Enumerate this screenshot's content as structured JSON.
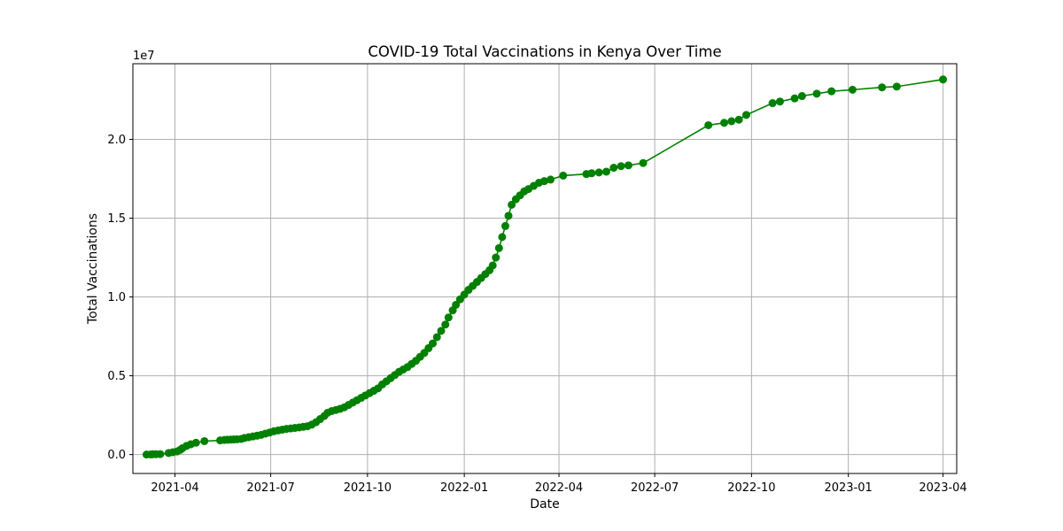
{
  "chart_data": {
    "type": "line",
    "title": "COVID-19 Total Vaccinations in Kenya Over Time",
    "xlabel": "Date",
    "ylabel": "Total Vaccinations",
    "y_offset_label": "1e7",
    "y_multiplier": 10000000,
    "xlim": [
      "2021-02-20",
      "2023-04-14"
    ],
    "ylim": [
      -1200000,
      24800000
    ],
    "x_ticks": [
      {
        "date": "2021-04-01",
        "label": "2021-04"
      },
      {
        "date": "2021-07-01",
        "label": "2021-07"
      },
      {
        "date": "2021-10-01",
        "label": "2021-10"
      },
      {
        "date": "2022-01-01",
        "label": "2022-01"
      },
      {
        "date": "2022-04-01",
        "label": "2022-04"
      },
      {
        "date": "2022-07-01",
        "label": "2022-07"
      },
      {
        "date": "2022-10-01",
        "label": "2022-10"
      },
      {
        "date": "2023-01-01",
        "label": "2023-01"
      },
      {
        "date": "2023-04-01",
        "label": "2023-04"
      }
    ],
    "y_ticks": [
      {
        "value": 0,
        "label": "0.0"
      },
      {
        "value": 5000000,
        "label": "0.5"
      },
      {
        "value": 10000000,
        "label": "1.0"
      },
      {
        "value": 15000000,
        "label": "1.5"
      },
      {
        "value": 20000000,
        "label": "2.0"
      }
    ],
    "grid": true,
    "series": [
      {
        "color": "#008000",
        "marker": "circle",
        "points": [
          [
            "2021-03-05",
            0
          ],
          [
            "2021-03-09",
            10000
          ],
          [
            "2021-03-11",
            20000
          ],
          [
            "2021-03-14",
            25000
          ],
          [
            "2021-03-18",
            30000
          ],
          [
            "2021-03-26",
            100000
          ],
          [
            "2021-03-30",
            150000
          ],
          [
            "2021-04-03",
            200000
          ],
          [
            "2021-04-06",
            300000
          ],
          [
            "2021-04-08",
            400000
          ],
          [
            "2021-04-12",
            550000
          ],
          [
            "2021-04-16",
            650000
          ],
          [
            "2021-04-21",
            750000
          ],
          [
            "2021-04-29",
            850000
          ],
          [
            "2021-05-14",
            900000
          ],
          [
            "2021-05-18",
            930000
          ],
          [
            "2021-05-21",
            940000
          ],
          [
            "2021-05-24",
            950000
          ],
          [
            "2021-05-27",
            960000
          ],
          [
            "2021-05-30",
            970000
          ],
          [
            "2021-06-03",
            990000
          ],
          [
            "2021-06-06",
            1050000
          ],
          [
            "2021-06-10",
            1100000
          ],
          [
            "2021-06-14",
            1150000
          ],
          [
            "2021-06-18",
            1200000
          ],
          [
            "2021-06-22",
            1250000
          ],
          [
            "2021-06-26",
            1330000
          ],
          [
            "2021-06-30",
            1400000
          ],
          [
            "2021-07-04",
            1480000
          ],
          [
            "2021-07-08",
            1530000
          ],
          [
            "2021-07-12",
            1580000
          ],
          [
            "2021-07-16",
            1630000
          ],
          [
            "2021-07-20",
            1660000
          ],
          [
            "2021-07-24",
            1690000
          ],
          [
            "2021-07-28",
            1720000
          ],
          [
            "2021-08-01",
            1760000
          ],
          [
            "2021-08-05",
            1800000
          ],
          [
            "2021-08-09",
            1900000
          ],
          [
            "2021-08-13",
            2050000
          ],
          [
            "2021-08-17",
            2250000
          ],
          [
            "2021-08-21",
            2450000
          ],
          [
            "2021-08-24",
            2650000
          ],
          [
            "2021-08-28",
            2760000
          ],
          [
            "2021-09-01",
            2830000
          ],
          [
            "2021-09-05",
            2900000
          ],
          [
            "2021-09-09",
            3000000
          ],
          [
            "2021-09-13",
            3150000
          ],
          [
            "2021-09-17",
            3300000
          ],
          [
            "2021-09-21",
            3450000
          ],
          [
            "2021-09-25",
            3600000
          ],
          [
            "2021-09-29",
            3750000
          ],
          [
            "2021-10-03",
            3900000
          ],
          [
            "2021-10-07",
            4050000
          ],
          [
            "2021-10-11",
            4200000
          ],
          [
            "2021-10-15",
            4450000
          ],
          [
            "2021-10-19",
            4650000
          ],
          [
            "2021-10-23",
            4850000
          ],
          [
            "2021-10-27",
            5050000
          ],
          [
            "2021-10-31",
            5250000
          ],
          [
            "2021-11-04",
            5400000
          ],
          [
            "2021-11-08",
            5550000
          ],
          [
            "2021-11-12",
            5750000
          ],
          [
            "2021-11-16",
            5950000
          ],
          [
            "2021-11-20",
            6200000
          ],
          [
            "2021-11-24",
            6450000
          ],
          [
            "2021-11-28",
            6750000
          ],
          [
            "2021-12-02",
            7050000
          ],
          [
            "2021-12-06",
            7450000
          ],
          [
            "2021-12-10",
            7850000
          ],
          [
            "2021-12-14",
            8250000
          ],
          [
            "2021-12-17",
            8700000
          ],
          [
            "2021-12-21",
            9150000
          ],
          [
            "2021-12-24",
            9500000
          ],
          [
            "2021-12-28",
            9850000
          ],
          [
            "2022-01-01",
            10150000
          ],
          [
            "2022-01-05",
            10450000
          ],
          [
            "2022-01-09",
            10700000
          ],
          [
            "2022-01-13",
            10950000
          ],
          [
            "2022-01-17",
            11200000
          ],
          [
            "2022-01-21",
            11450000
          ],
          [
            "2022-01-25",
            11700000
          ],
          [
            "2022-01-28",
            12000000
          ],
          [
            "2022-01-31",
            12500000
          ],
          [
            "2022-02-03",
            13100000
          ],
          [
            "2022-02-06",
            13800000
          ],
          [
            "2022-02-09",
            14500000
          ],
          [
            "2022-02-12",
            15150000
          ],
          [
            "2022-02-15",
            15850000
          ],
          [
            "2022-02-19",
            16200000
          ],
          [
            "2022-02-23",
            16450000
          ],
          [
            "2022-02-27",
            16700000
          ],
          [
            "2022-03-03",
            16850000
          ],
          [
            "2022-03-08",
            17050000
          ],
          [
            "2022-03-13",
            17250000
          ],
          [
            "2022-03-18",
            17350000
          ],
          [
            "2022-03-24",
            17450000
          ],
          [
            "2022-04-05",
            17700000
          ],
          [
            "2022-04-27",
            17800000
          ],
          [
            "2022-05-02",
            17850000
          ],
          [
            "2022-05-09",
            17900000
          ],
          [
            "2022-05-16",
            17950000
          ],
          [
            "2022-05-23",
            18200000
          ],
          [
            "2022-05-30",
            18300000
          ],
          [
            "2022-06-06",
            18350000
          ],
          [
            "2022-06-20",
            18500000
          ],
          [
            "2022-08-21",
            20900000
          ],
          [
            "2022-09-05",
            21050000
          ],
          [
            "2022-09-12",
            21150000
          ],
          [
            "2022-09-19",
            21250000
          ],
          [
            "2022-09-26",
            21550000
          ],
          [
            "2022-10-21",
            22300000
          ],
          [
            "2022-10-28",
            22400000
          ],
          [
            "2022-11-11",
            22600000
          ],
          [
            "2022-11-18",
            22750000
          ],
          [
            "2022-12-02",
            22900000
          ],
          [
            "2022-12-16",
            23050000
          ],
          [
            "2023-01-05",
            23150000
          ],
          [
            "2023-02-02",
            23300000
          ],
          [
            "2023-02-16",
            23350000
          ],
          [
            "2023-04-01",
            23800000
          ]
        ]
      }
    ]
  }
}
